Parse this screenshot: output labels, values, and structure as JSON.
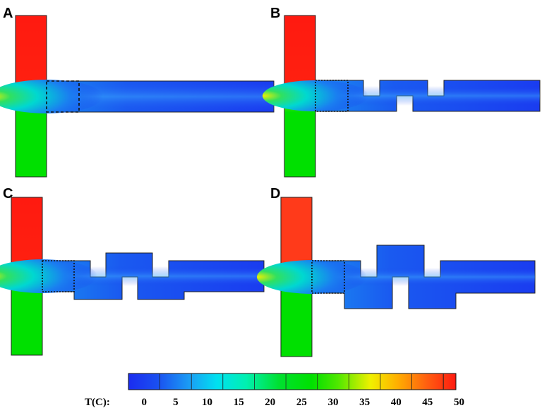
{
  "panels": [
    {
      "label": "A"
    },
    {
      "label": "B"
    },
    {
      "label": "C"
    },
    {
      "label": "D"
    }
  ],
  "colorbar": {
    "title": "T(C):",
    "ticks": [
      "0",
      "5",
      "10",
      "15",
      "20",
      "25",
      "30",
      "35",
      "40",
      "45",
      "50"
    ],
    "min": 0,
    "max": 52,
    "colors": {
      "cold": "#1a3cf0",
      "cool": "#00c8ff",
      "mid": "#00f0c0",
      "green": "#00e000",
      "yellow": "#f5f500",
      "orange": "#ff8800",
      "hot": "#ff1a10"
    }
  }
}
